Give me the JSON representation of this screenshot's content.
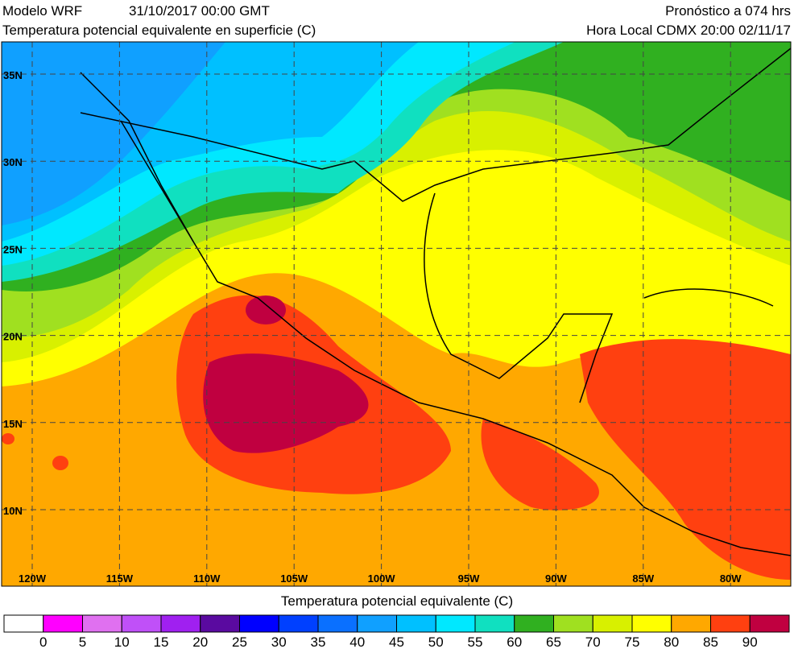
{
  "header": {
    "model": "Modelo WRF",
    "date": "31/10/2017 00:00 GMT",
    "title": "Temperatura potencial equivalente en superficie (C)",
    "forecast": "Pronóstico a 074 hrs",
    "local_time": "Hora Local CDMX 20:00 02/11/17"
  },
  "map": {
    "lat_labels": [
      "35N",
      "30N",
      "25N",
      "20N",
      "15N",
      "10N"
    ],
    "lon_labels": [
      "120W",
      "115W",
      "110W",
      "105W",
      "100W",
      "95W",
      "90W",
      "85W",
      "80W"
    ]
  },
  "colorbar": {
    "title": "Temperatura potencial equivalente (C)",
    "colors": [
      "#ffffff",
      "#ff00ff",
      "#e070f0",
      "#c050f8",
      "#a020f0",
      "#5a0aa0",
      "#0000ff",
      "#0040ff",
      "#0a70ff",
      "#10a0ff",
      "#00c0ff",
      "#00e8ff",
      "#10e0c0",
      "#30b020",
      "#a0e020",
      "#d8f000",
      "#ffff00",
      "#ffa800",
      "#ff4010",
      "#c00040"
    ],
    "ticks": [
      0,
      5,
      10,
      15,
      20,
      25,
      30,
      35,
      40,
      45,
      50,
      55,
      60,
      65,
      70,
      75,
      80,
      85,
      90
    ]
  }
}
